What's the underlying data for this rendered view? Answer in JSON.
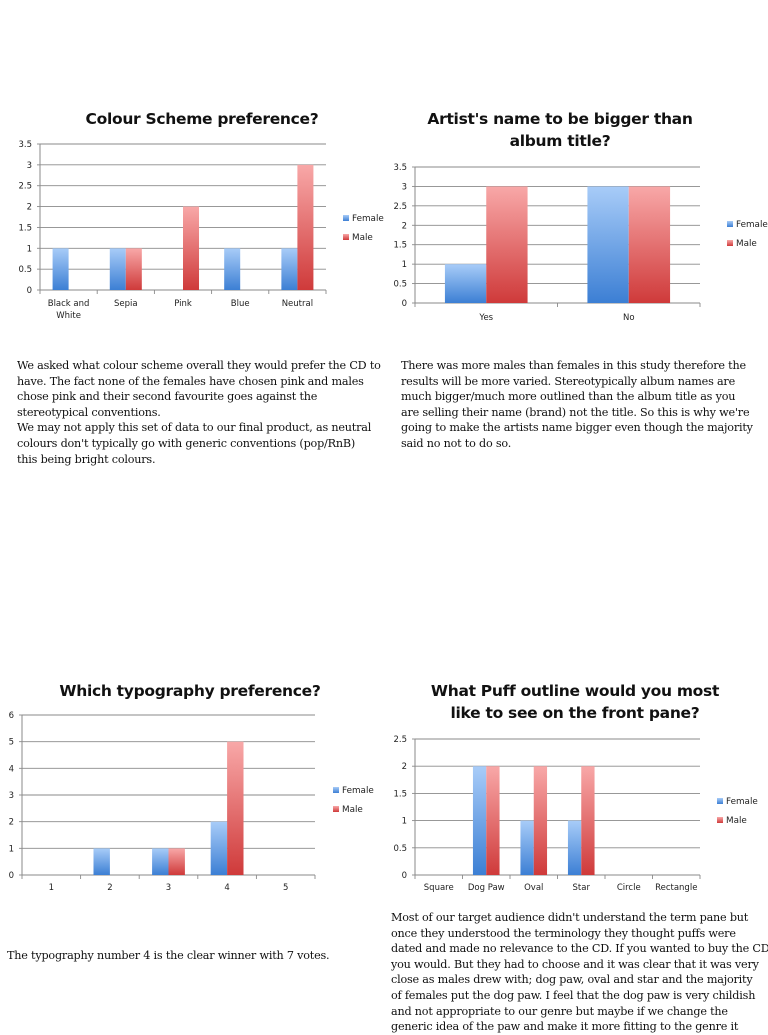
{
  "colors": {
    "female_top": "#a8ccf8",
    "female_bottom": "#3c7fd4",
    "male_top": "#f8a8a8",
    "male_bottom": "#cf3a3a",
    "gridline": "#8a8a8a",
    "axis": "#8a8a8a"
  },
  "chart_data": [
    {
      "id": "colour-scheme",
      "type": "bar",
      "title": "Colour Scheme preference?",
      "categories": [
        "Black and White",
        "Sepia",
        "Pink",
        "Blue",
        "Neutral"
      ],
      "category_lines": [
        [
          "Black and",
          "White"
        ],
        [
          "Sepia"
        ],
        [
          "Pink"
        ],
        [
          "Blue"
        ],
        [
          "Neutral"
        ]
      ],
      "series": [
        {
          "name": "Female",
          "values": [
            1,
            1,
            0,
            1,
            1
          ]
        },
        {
          "name": "Male",
          "values": [
            0,
            1,
            2,
            0,
            3
          ]
        }
      ],
      "yticks": [
        "0",
        "0.5",
        "1",
        "1.5",
        "2",
        "2.5",
        "3",
        "3.5"
      ],
      "ylim": [
        0,
        3.5
      ],
      "xlabel": "",
      "ylabel": "",
      "grid": true,
      "legend": "right"
    },
    {
      "id": "artist-name",
      "type": "bar",
      "title": "Artist's name to be bigger than album title?",
      "title_lines": [
        "Artist's name to be bigger than",
        "album title?"
      ],
      "categories": [
        "Yes",
        "No"
      ],
      "category_lines": [
        [
          "Yes"
        ],
        [
          "No"
        ]
      ],
      "series": [
        {
          "name": "Female",
          "values": [
            1,
            3
          ]
        },
        {
          "name": "Male",
          "values": [
            3,
            3
          ]
        }
      ],
      "yticks": [
        "0",
        "0.5",
        "1",
        "1.5",
        "2",
        "2.5",
        "3",
        "3.5"
      ],
      "ylim": [
        0,
        3.5
      ],
      "xlabel": "",
      "ylabel": "",
      "grid": true,
      "legend": "right"
    },
    {
      "id": "typography",
      "type": "bar",
      "title": "Which typography preference?",
      "categories": [
        "1",
        "2",
        "3",
        "4",
        "5"
      ],
      "category_lines": [
        [
          "1"
        ],
        [
          "2"
        ],
        [
          "3"
        ],
        [
          "4"
        ],
        [
          "5"
        ]
      ],
      "series": [
        {
          "name": "Female",
          "values": [
            0,
            1,
            1,
            2,
            0
          ]
        },
        {
          "name": "Male",
          "values": [
            0,
            0,
            1,
            5,
            0
          ]
        }
      ],
      "yticks": [
        "0",
        "1",
        "2",
        "3",
        "4",
        "5",
        "6"
      ],
      "ylim": [
        0,
        6
      ],
      "xlabel": "",
      "ylabel": "",
      "grid": true,
      "legend": "right"
    },
    {
      "id": "puff-outline",
      "type": "bar",
      "title": "What Puff outline would you most like to see on the front pane?",
      "title_lines": [
        "What Puff outline would you most",
        "like to see on the front pane?"
      ],
      "categories": [
        "Square",
        "Dog Paw",
        "Oval",
        "Star",
        "Circle",
        "Rectangle"
      ],
      "category_lines": [
        [
          "Square"
        ],
        [
          "Dog Paw"
        ],
        [
          "Oval"
        ],
        [
          "Star"
        ],
        [
          "Circle"
        ],
        [
          "Rectangle"
        ]
      ],
      "series": [
        {
          "name": "Female",
          "values": [
            0,
            2,
            1,
            1,
            0,
            0
          ]
        },
        {
          "name": "Male",
          "values": [
            0,
            2,
            2,
            2,
            0,
            0
          ]
        }
      ],
      "yticks": [
        "0",
        "0.5",
        "1",
        "1.5",
        "2",
        "2.5"
      ],
      "ylim": [
        0,
        2.5
      ],
      "xlabel": "",
      "ylabel": "",
      "grid": true,
      "legend": "right"
    }
  ],
  "titles": {
    "colour_scheme": "Colour Scheme preference?",
    "artist_name_line1": "Artist's name to be bigger than",
    "artist_name_line2": "album title?",
    "typography": "Which typography preference?",
    "puff_line1": "What Puff outline would you most",
    "puff_line2": "like to see on the front pane?"
  },
  "paragraphs": {
    "colour_scheme": [
      "We asked what colour scheme overall they would prefer the CD to",
      "have. The fact none of the females have chosen pink and males",
      "chose pink and their second favourite goes against the",
      "stereotypical conventions.",
      "We may not apply this set of data to our final product, as neutral",
      "colours don't typically go with generic conventions (pop/RnB)",
      "this being bright colours."
    ],
    "artist_name": [
      "There was more males than females in this study therefore the",
      "results will be more varied. Stereotypically album names are",
      "much bigger/much more outlined than the album title as you",
      "are selling their name (brand) not the title. So this is why we're",
      "going to make the artists name bigger even though the majority",
      "said no not to do so."
    ],
    "typography": [
      "The typography number 4 is the clear winner with 7 votes."
    ],
    "puff_outline": [
      "Most of our target audience didn't understand the term pane but",
      "once they understood the terminology they thought puffs were",
      "dated and made no relevance to the CD. If you wanted to buy the CD",
      "you would. But they had to choose and it was clear that it was very",
      "close as males drew with; dog paw, oval and star and the majority",
      "of females put the dog paw. I feel that the dog paw is very childish",
      "and not appropriate to our genre but maybe if we change the",
      "generic idea of the paw and make it more fitting to the genre it"
    ]
  }
}
